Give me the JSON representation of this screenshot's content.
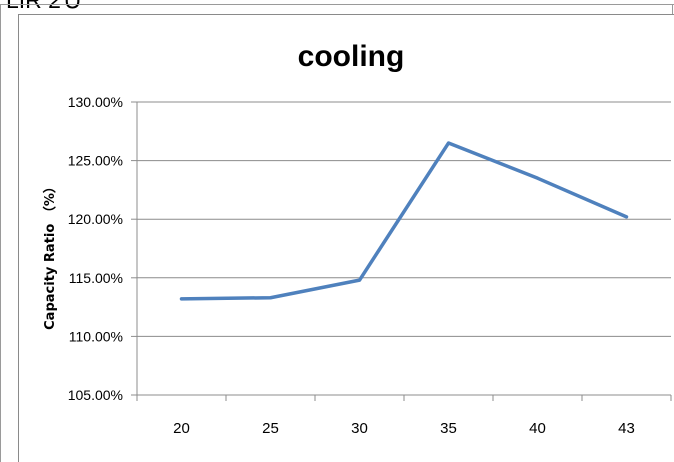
{
  "fragment_text": "LIR 2Ｕ",
  "chart_data": {
    "type": "line",
    "title": "cooling",
    "xlabel": "",
    "ylabel": "Capacity Ratio （%）",
    "categories": [
      "20",
      "25",
      "30",
      "35",
      "40",
      "43"
    ],
    "series": [
      {
        "values": [
          113.2,
          113.3,
          114.8,
          126.5,
          123.5,
          120.2
        ]
      }
    ],
    "ylim": [
      105,
      130
    ],
    "yticks": [
      "105.00%",
      "110.00%",
      "115.00%",
      "120.00%",
      "125.00%",
      "130.00%"
    ],
    "grid": true,
    "legend": "none",
    "colors": {
      "line": "#4f81bd",
      "grid": "#8c8c8c",
      "text": "#000000"
    }
  }
}
